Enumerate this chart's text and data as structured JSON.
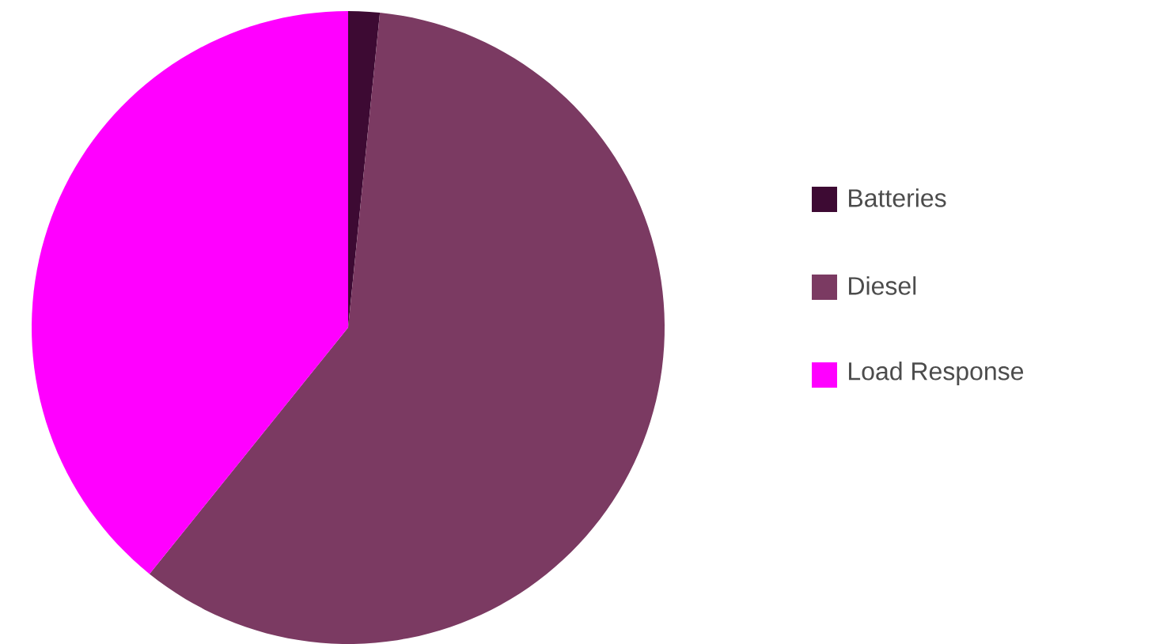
{
  "chart_data": {
    "type": "pie",
    "categories": [
      "Batteries",
      "Diesel",
      "Load Response"
    ],
    "values": [
      1.6,
      59.2,
      39.2
    ],
    "colors": [
      "#3d0a33",
      "#7b3a62",
      "#ff00ff"
    ],
    "legend": "right"
  }
}
